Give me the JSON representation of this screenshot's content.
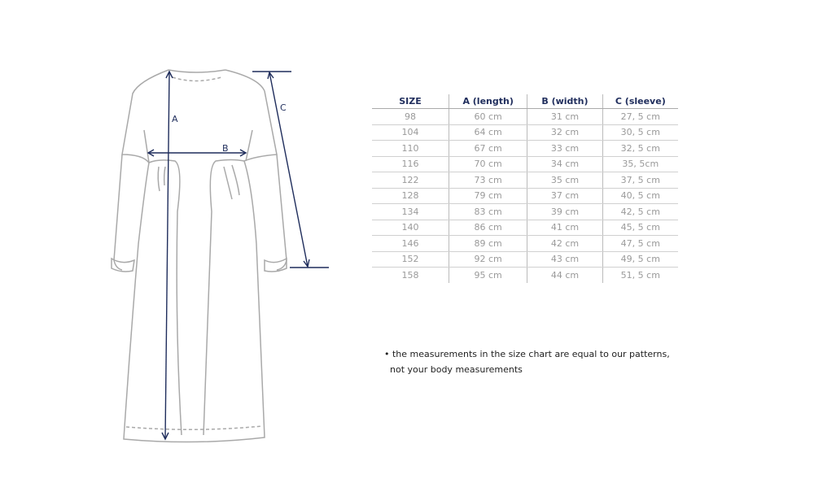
{
  "diagram": {
    "labels": {
      "a": "A",
      "b": "B",
      "c": "C"
    },
    "colors": {
      "outline": "#a9a9a9",
      "measure": "#1f2d5c"
    }
  },
  "table": {
    "headers": [
      "SIZE",
      "A (length)",
      "B (width)",
      "C (sleeve)"
    ],
    "rows": [
      [
        "98",
        "60 cm",
        "31 cm",
        "27, 5 cm"
      ],
      [
        "104",
        "64 cm",
        "32 cm",
        "30, 5 cm"
      ],
      [
        "110",
        "67 cm",
        "33 cm",
        "32, 5 cm"
      ],
      [
        "116",
        "70 cm",
        "34 cm",
        "35, 5cm"
      ],
      [
        "122",
        "73 cm",
        "35 cm",
        "37, 5 cm"
      ],
      [
        "128",
        "79 cm",
        "37 cm",
        "40, 5 cm"
      ],
      [
        "134",
        "83 cm",
        "39 cm",
        "42, 5 cm"
      ],
      [
        "140",
        "86 cm",
        "41 cm",
        "45, 5 cm"
      ],
      [
        "146",
        "89 cm",
        "42 cm",
        "47, 5 cm"
      ],
      [
        "152",
        "92 cm",
        "43 cm",
        "49, 5 cm"
      ],
      [
        "158",
        "95 cm",
        "44 cm",
        "51, 5 cm"
      ]
    ]
  },
  "note": {
    "line1": "• the measurements in the size chart are equal to our patterns,",
    "line2": "not your body measurements"
  }
}
